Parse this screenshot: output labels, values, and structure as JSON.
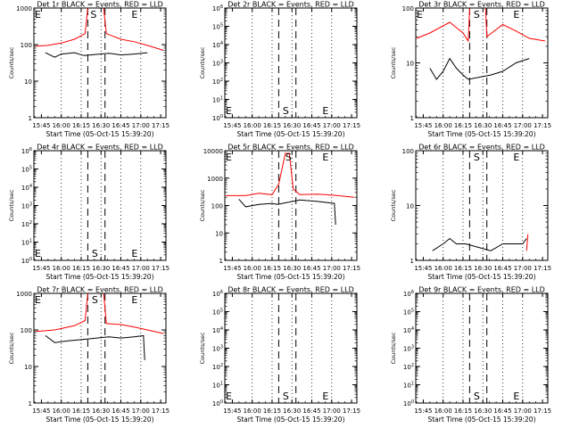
{
  "figure": {
    "xlabel": "Start Time (05-Oct-15 15:39:20)",
    "ylabel": "Counts/sec",
    "x_ticks": [
      "15:45",
      "16:00",
      "16:15",
      "16:30",
      "16:45",
      "17:00",
      "17:15"
    ],
    "series_colors": {
      "events": "#000000",
      "lld": "#ff0000"
    },
    "dotted_times": [
      "16:00",
      "16:15",
      "16:30",
      "16:45",
      "17:00"
    ],
    "dashed_times": [
      "16:20",
      "16:33"
    ]
  },
  "chart_data": [
    {
      "type": "line",
      "title": "Det 1r BLACK = Events, RED = LLD",
      "yscale": "log",
      "ylim": [
        1,
        1000
      ],
      "y_ticks": [
        "1",
        "10",
        "100",
        "1000"
      ],
      "markers": [
        {
          "label": "E",
          "time": "15:40",
          "pos": "top"
        },
        {
          "label": "S",
          "time": "16:22",
          "pos": "top"
        },
        {
          "label": "E",
          "time": "16:53",
          "pos": "top"
        }
      ],
      "series": [
        {
          "name": "LLD",
          "color": "#ff0000",
          "points": [
            [
              "15:40",
              90
            ],
            [
              "15:50",
              95
            ],
            [
              "16:00",
              110
            ],
            [
              "16:10",
              140
            ],
            [
              "16:18",
              200
            ],
            [
              "16:20",
              1000
            ],
            [
              "16:32",
              1000
            ],
            [
              "16:34",
              200
            ],
            [
              "16:45",
              140
            ],
            [
              "16:55",
              120
            ],
            [
              "17:05",
              95
            ],
            [
              "17:17",
              70
            ]
          ]
        },
        {
          "name": "Events",
          "color": "#000000",
          "points": [
            [
              "15:48",
              60
            ],
            [
              "15:55",
              45
            ],
            [
              "16:00",
              55
            ],
            [
              "16:10",
              60
            ],
            [
              "16:17",
              50
            ],
            [
              "16:36",
              58
            ],
            [
              "16:45",
              52
            ],
            [
              "16:55",
              55
            ],
            [
              "17:05",
              60
            ]
          ]
        }
      ]
    },
    {
      "type": "line",
      "title": "Det 2r BLACK = Events, RED = LLD",
      "yscale": "log",
      "ylim": [
        1,
        1000000
      ],
      "y_ticks": [
        "10^0",
        "10^1",
        "10^2",
        "10^3",
        "10^4",
        "10^5",
        "10^6"
      ],
      "markers": [
        {
          "label": "E",
          "time": "15:40",
          "pos": "bottom"
        },
        {
          "label": "S",
          "time": "16:23",
          "pos": "bottom"
        },
        {
          "label": "E",
          "time": "16:53",
          "pos": "bottom"
        }
      ],
      "series": []
    },
    {
      "type": "line",
      "title": "Det 3r BLACK = Events, RED = LLD",
      "yscale": "log",
      "ylim": [
        1,
        100
      ],
      "y_ticks": [
        "1",
        "10",
        "100"
      ],
      "markers": [
        {
          "label": "E",
          "time": "15:40",
          "pos": "top"
        },
        {
          "label": "S",
          "time": "16:23",
          "pos": "top"
        },
        {
          "label": "E",
          "time": "16:53",
          "pos": "top"
        }
      ],
      "series": [
        {
          "name": "LLD",
          "color": "#ff0000",
          "points": [
            [
              "15:40",
              28
            ],
            [
              "15:50",
              35
            ],
            [
              "16:05",
              55
            ],
            [
              "16:15",
              35
            ],
            [
              "16:19",
              25
            ],
            [
              "16:20",
              100
            ],
            [
              "16:32",
              100
            ],
            [
              "16:33",
              30
            ],
            [
              "16:45",
              50
            ],
            [
              "16:55",
              38
            ],
            [
              "17:05",
              28
            ],
            [
              "17:17",
              25
            ]
          ]
        },
        {
          "name": "Events",
          "color": "#000000",
          "points": [
            [
              "15:50",
              8
            ],
            [
              "15:55",
              5
            ],
            [
              "16:00",
              7
            ],
            [
              "16:05",
              12
            ],
            [
              "16:10",
              8
            ],
            [
              "16:15",
              6
            ],
            [
              "16:19",
              5
            ],
            [
              "16:36",
              6
            ],
            [
              "16:45",
              7
            ],
            [
              "16:55",
              10
            ],
            [
              "17:05",
              12
            ]
          ]
        }
      ]
    },
    {
      "type": "line",
      "title": "Det 4r BLACK = Events, RED = LLD",
      "yscale": "log",
      "ylim": [
        1,
        1000000
      ],
      "y_ticks": [
        "10^0",
        "10^1",
        "10^2",
        "10^3",
        "10^4",
        "10^5",
        "10^6"
      ],
      "markers": [
        {
          "label": "E",
          "time": "15:40",
          "pos": "bottom"
        },
        {
          "label": "S",
          "time": "16:23",
          "pos": "bottom"
        },
        {
          "label": "E",
          "time": "16:53",
          "pos": "bottom"
        }
      ],
      "series": []
    },
    {
      "type": "line",
      "title": "Det 5r BLACK = Events, RED = LLD",
      "yscale": "log",
      "ylim": [
        1,
        10000
      ],
      "y_ticks": [
        "1",
        "10",
        "100",
        "1000",
        "10000"
      ],
      "markers": [
        {
          "label": "E",
          "time": "15:40",
          "pos": "top"
        },
        {
          "label": "S",
          "time": "16:25",
          "pos": "top"
        },
        {
          "label": "E",
          "time": "16:53",
          "pos": "top"
        }
      ],
      "series": [
        {
          "name": "LLD",
          "color": "#ff0000",
          "points": [
            [
              "15:40",
              230
            ],
            [
              "15:55",
              230
            ],
            [
              "16:05",
              280
            ],
            [
              "16:15",
              250
            ],
            [
              "16:20",
              600
            ],
            [
              "16:25",
              8000
            ],
            [
              "16:28",
              8000
            ],
            [
              "16:31",
              400
            ],
            [
              "16:36",
              250
            ],
            [
              "16:50",
              260
            ],
            [
              "17:05",
              230
            ],
            [
              "17:17",
              200
            ]
          ]
        },
        {
          "name": "Events",
          "color": "#000000",
          "points": [
            [
              "15:50",
              170
            ],
            [
              "15:55",
              90
            ],
            [
              "16:05",
              110
            ],
            [
              "16:15",
              120
            ],
            [
              "16:19",
              110
            ],
            [
              "16:36",
              160
            ],
            [
              "16:50",
              140
            ],
            [
              "17:02",
              120
            ],
            [
              "17:03",
              20
            ]
          ]
        }
      ]
    },
    {
      "type": "line",
      "title": "Det 6r BLACK = Events, RED = LLD",
      "yscale": "log",
      "ylim": [
        1,
        100
      ],
      "y_ticks": [
        "1",
        "10",
        "100"
      ],
      "markers": [
        {
          "label": "S",
          "time": "16:23",
          "pos": "top"
        },
        {
          "label": "E",
          "time": "16:53",
          "pos": "top"
        }
      ],
      "series": [
        {
          "name": "LLD",
          "color": "#ff0000",
          "points": [
            [
              "17:03",
              1.5
            ],
            [
              "17:04",
              3
            ]
          ]
        },
        {
          "name": "Events",
          "color": "#000000",
          "points": [
            [
              "15:52",
              1.5
            ],
            [
              "16:00",
              2
            ],
            [
              "16:05",
              2.5
            ],
            [
              "16:10",
              2
            ],
            [
              "16:17",
              2
            ],
            [
              "16:36",
              1.5
            ],
            [
              "16:45",
              2
            ],
            [
              "16:55",
              2
            ],
            [
              "17:00",
              2
            ],
            [
              "17:03",
              2.5
            ]
          ]
        }
      ]
    },
    {
      "type": "line",
      "title": "Det 7r BLACK = Events, RED = LLD",
      "yscale": "log",
      "ylim": [
        1,
        1000
      ],
      "y_ticks": [
        "1",
        "10",
        "100",
        "1000"
      ],
      "markers": [
        {
          "label": "E",
          "time": "15:40",
          "pos": "top"
        },
        {
          "label": "S",
          "time": "16:23",
          "pos": "top"
        },
        {
          "label": "E",
          "time": "16:53",
          "pos": "top"
        }
      ],
      "series": [
        {
          "name": "LLD",
          "color": "#ff0000",
          "points": [
            [
              "15:40",
              90
            ],
            [
              "15:55",
              100
            ],
            [
              "16:10",
              130
            ],
            [
              "16:18",
              180
            ],
            [
              "16:20",
              1000
            ],
            [
              "16:32",
              1000
            ],
            [
              "16:34",
              150
            ],
            [
              "16:45",
              140
            ],
            [
              "16:55",
              120
            ],
            [
              "17:05",
              100
            ],
            [
              "17:17",
              80
            ]
          ]
        },
        {
          "name": "Events",
          "color": "#000000",
          "points": [
            [
              "15:48",
              70
            ],
            [
              "15:55",
              45
            ],
            [
              "16:05",
              50
            ],
            [
              "16:17",
              55
            ],
            [
              "16:36",
              65
            ],
            [
              "16:45",
              60
            ],
            [
              "16:55",
              65
            ],
            [
              "17:02",
              70
            ],
            [
              "17:03",
              15
            ]
          ]
        }
      ]
    },
    {
      "type": "line",
      "title": "Det 8r BLACK = Events, RED = LLD",
      "yscale": "log",
      "ylim": [
        1,
        1000000
      ],
      "y_ticks": [
        "10^0",
        "10^1",
        "10^2",
        "10^3",
        "10^4",
        "10^5",
        "10^6"
      ],
      "markers": [
        {
          "label": "E",
          "time": "15:40",
          "pos": "bottom"
        },
        {
          "label": "S",
          "time": "16:23",
          "pos": "bottom"
        },
        {
          "label": "E",
          "time": "16:53",
          "pos": "bottom"
        }
      ],
      "series": []
    },
    {
      "type": "line",
      "title": "Det 9r BLACK = Events, RED = LLD",
      "yscale": "log",
      "ylim": [
        1,
        1000000
      ],
      "y_ticks": [
        "10^0",
        "10^1",
        "10^2",
        "10^3",
        "10^4",
        "10^5",
        "10^6"
      ],
      "markers": [
        {
          "label": "S",
          "time": "16:23",
          "pos": "bottom"
        },
        {
          "label": "E",
          "time": "16:53",
          "pos": "bottom"
        }
      ],
      "series": []
    }
  ]
}
